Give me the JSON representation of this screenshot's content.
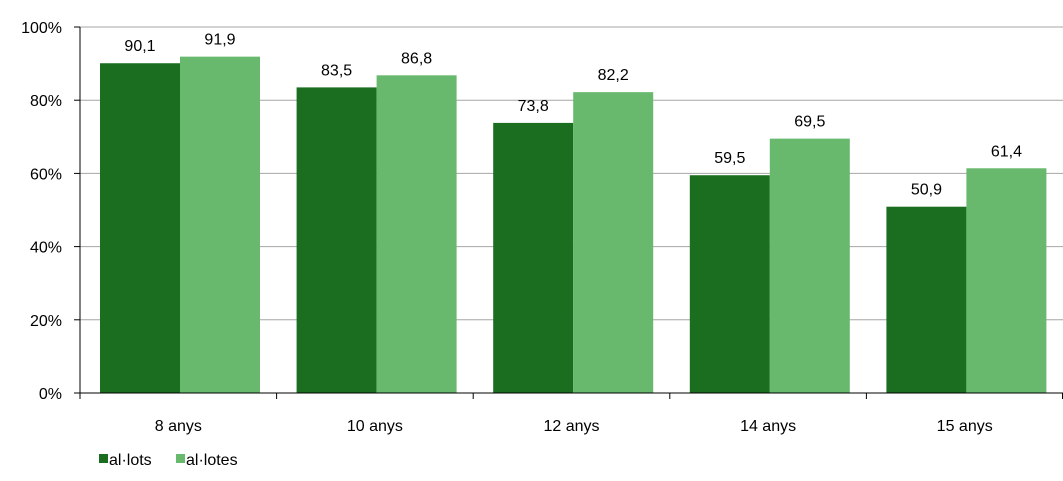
{
  "chart_data": {
    "type": "bar",
    "categories": [
      "8 anys",
      "10 anys",
      "12 anys",
      "14 anys",
      "15 anys"
    ],
    "series": [
      {
        "name": "al·lots",
        "color": "#1b6e1f",
        "values": [
          90.1,
          83.5,
          73.8,
          59.5,
          50.9
        ],
        "labels": [
          "90,1",
          "83,5",
          "73,8",
          "59,5",
          "50,9"
        ]
      },
      {
        "name": "al·lotes",
        "color": "#68b96d",
        "values": [
          91.9,
          86.8,
          82.2,
          69.5,
          61.4
        ],
        "labels": [
          "91,9",
          "86,8",
          "82,2",
          "69,5",
          "61,4"
        ]
      }
    ],
    "ylim": [
      0,
      100
    ],
    "yticks": [
      0,
      20,
      40,
      60,
      80,
      100
    ],
    "ytick_labels": [
      "0%",
      "20%",
      "40%",
      "60%",
      "80%",
      "100%"
    ],
    "title": "",
    "xlabel": "",
    "ylabel": "",
    "grid": true,
    "gridline_color": "#a6a6a6",
    "legend_position": "bottom-left"
  }
}
